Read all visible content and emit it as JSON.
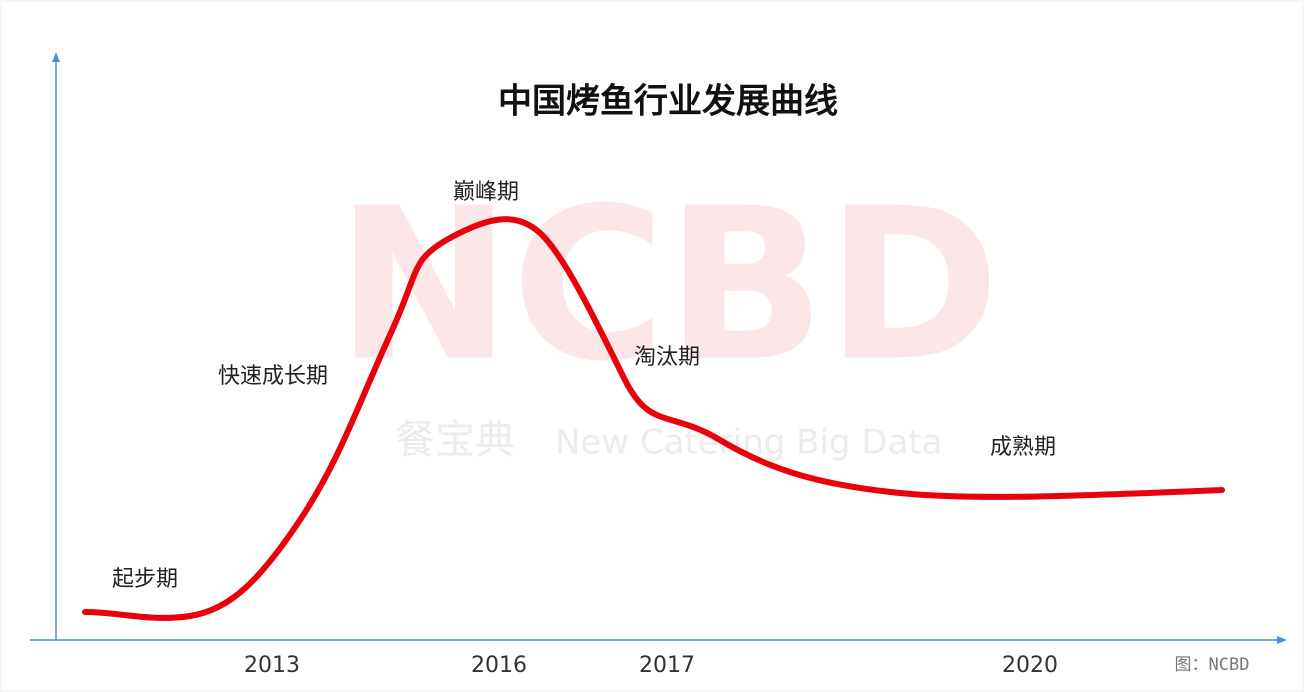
{
  "title": "中国烤鱼行业发展曲线",
  "stages": [
    "起步期",
    "快速成长期",
    "巅峰期",
    "淘汰期",
    "成熟期"
  ],
  "x_labels": [
    "2013",
    "2016",
    "2017",
    "2020"
  ],
  "source": "图：NCBD",
  "watermark": {
    "logo": "NCBD",
    "name": "餐宝典",
    "tagline": "New Catering Big Data"
  }
}
